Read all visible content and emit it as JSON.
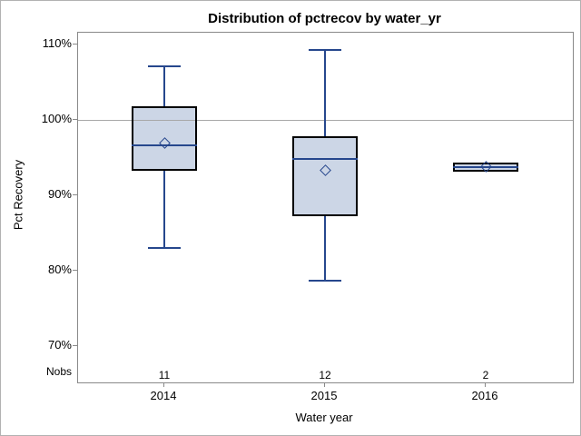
{
  "title": "Distribution of pctrecov by water_yr",
  "chart_data": {
    "type": "box",
    "title": "Distribution of pctrecov by water_yr",
    "xlabel": "Water year",
    "ylabel": "Pct Recovery",
    "nobs_label": "Nobs",
    "categories": [
      "2014",
      "2015",
      "2016"
    ],
    "nobs": [
      "11",
      "12",
      "2"
    ],
    "y_ticks": [
      70,
      80,
      90,
      100,
      110
    ],
    "y_tick_labels": [
      "70%",
      "80%",
      "90%",
      "100%",
      "110%"
    ],
    "ylim": [
      65.2,
      111.6
    ],
    "reference_line": 100,
    "grid": false,
    "legend": "none",
    "series": [
      {
        "category": "2014",
        "nobs": 11,
        "whisker_low": 83.0,
        "q1": 93.3,
        "median": 96.6,
        "mean": 97.0,
        "q3": 101.8,
        "whisker_high": 107.2
      },
      {
        "category": "2015",
        "nobs": 12,
        "whisker_low": 78.7,
        "q1": 87.2,
        "median": 94.8,
        "mean": 93.3,
        "q3": 97.9,
        "whisker_high": 109.3
      },
      {
        "category": "2016",
        "nobs": 2,
        "whisker_low": 93.1,
        "q1": 93.1,
        "median": 93.8,
        "mean": 93.8,
        "q3": 94.4,
        "whisker_high": 94.4
      }
    ],
    "colors": {
      "box_fill": "#ccd6e6",
      "box_border": "#000000",
      "whisker": "#26478d",
      "median": "#26478d",
      "mean_marker": "#26478d",
      "reference_line": "#a8a8a8",
      "axis": "#898989",
      "text": "#000000",
      "background": "#ffffff"
    }
  }
}
